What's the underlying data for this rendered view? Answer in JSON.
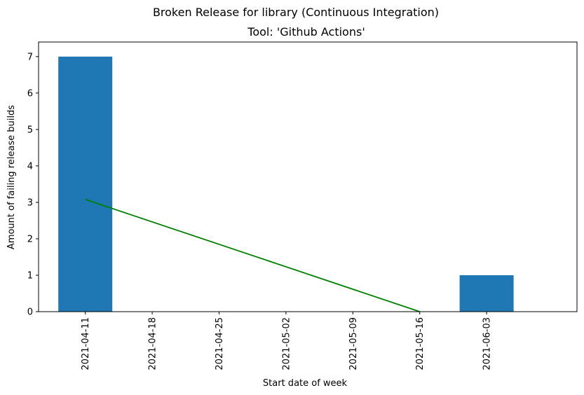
{
  "chart_data": {
    "type": "bar",
    "title": "Broken Release for library (Continuous Integration)",
    "subtitle": "Tool: 'Github Actions'",
    "xlabel": "Start date of week",
    "ylabel": "Amount of failing release builds",
    "categories": [
      "2021-04-11",
      "2021-04-18",
      "2021-04-25",
      "2021-05-02",
      "2021-05-09",
      "2021-05-16",
      "2021-06-03"
    ],
    "values": [
      7,
      0,
      0,
      0,
      0,
      0,
      1
    ],
    "ylim": [
      0,
      7.4
    ],
    "yticks": [
      0,
      1,
      2,
      3,
      4,
      5,
      6,
      7
    ],
    "grid": false,
    "bar_color": "#1f77b4",
    "trend_color": "#008000",
    "trend_line": {
      "from": {
        "x": "2021-04-11",
        "y": 3.08
      },
      "to": {
        "x": "2021-05-16",
        "y": 0
      }
    }
  }
}
